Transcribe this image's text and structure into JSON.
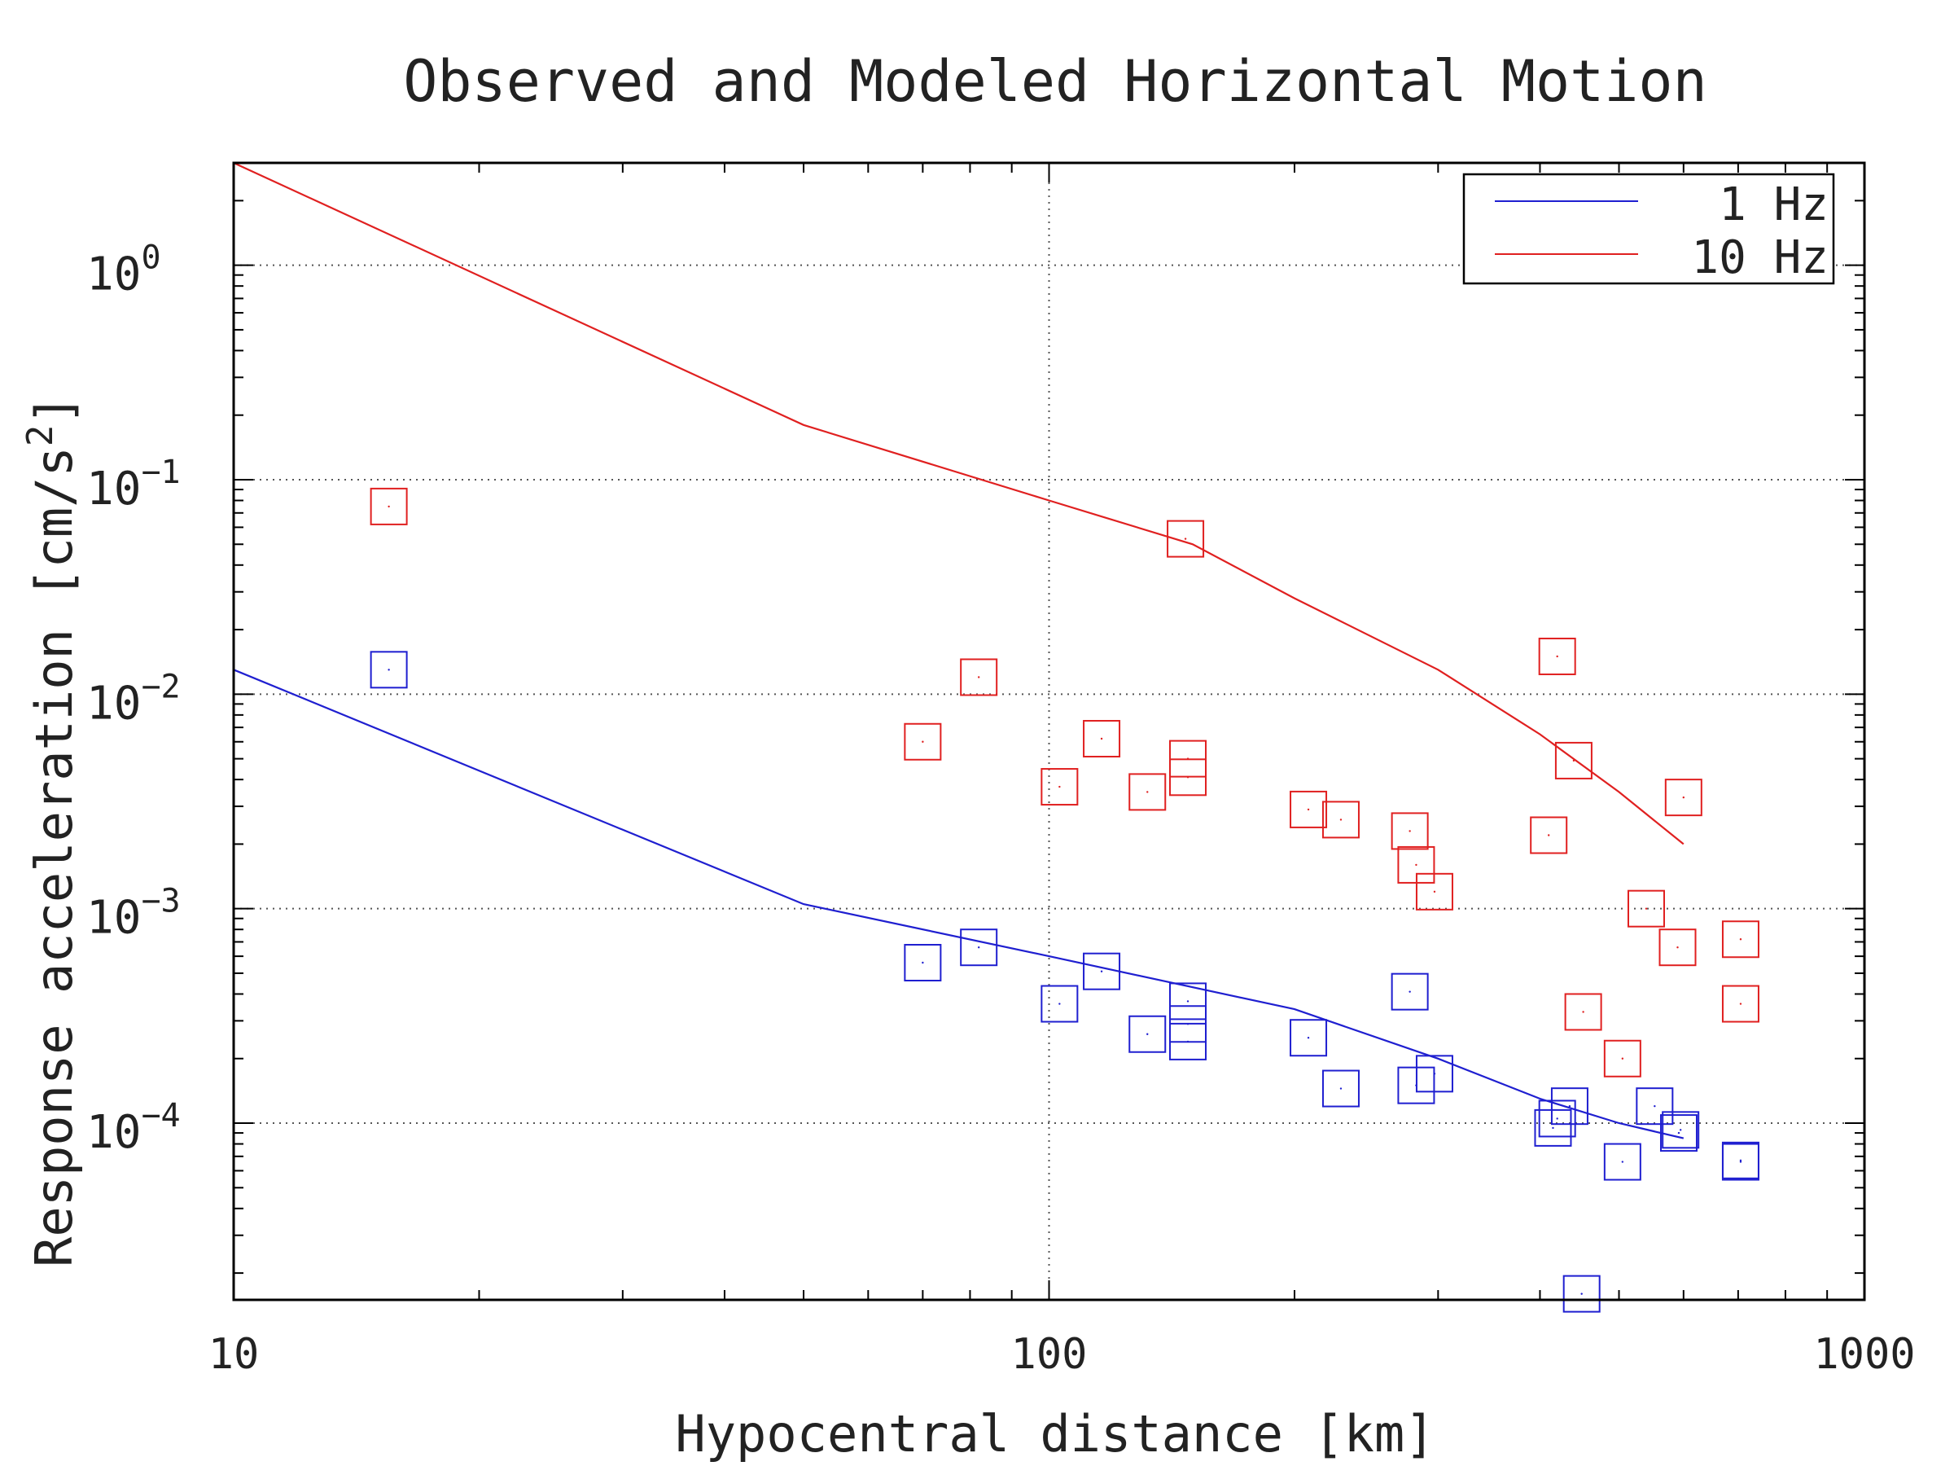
{
  "chart_data": {
    "type": "scatter",
    "title": "Observed and Modeled Horizontal Motion",
    "xlabel": "Hypocentral distance [km]",
    "ylabel_main": "Response acceleration [cm/s",
    "ylabel_sup": "2",
    "ylabel_end": "]",
    "xscale": "log",
    "yscale": "log",
    "xlim": [
      10,
      1000
    ],
    "ylim": [
      1.5e-05,
      3
    ],
    "x_ticks": [
      {
        "value": 10,
        "label": "10"
      },
      {
        "value": 100,
        "label": "100"
      },
      {
        "value": 1000,
        "label": "1000"
      }
    ],
    "y_ticks": [
      {
        "value": 1,
        "base": "10",
        "exp": "0"
      },
      {
        "value": 0.1,
        "base": "10",
        "exp": "−1"
      },
      {
        "value": 0.01,
        "base": "10",
        "exp": "−2"
      },
      {
        "value": 0.001,
        "base": "10",
        "exp": "−3"
      },
      {
        "value": 0.0001,
        "base": "10",
        "exp": "−4"
      }
    ],
    "grid": "dotted",
    "legend_position": "top-right",
    "colors": {
      "1 Hz": "#1f1fd0",
      "10 Hz": "#e02020"
    },
    "series": [
      {
        "name": "1 Hz",
        "color": "#1f1fd0",
        "model": [
          [
            10,
            0.013
          ],
          [
            50,
            0.00105
          ],
          [
            100,
            0.0006
          ],
          [
            200,
            0.00034
          ],
          [
            300,
            0.0002
          ],
          [
            400,
            0.00013
          ],
          [
            500,
            0.0001
          ],
          [
            600,
            8.5e-05
          ]
        ],
        "observed": [
          [
            15.5,
            0.013
          ],
          [
            70,
            0.00056
          ],
          [
            82,
            0.00066
          ],
          [
            103,
            0.00036
          ],
          [
            116,
            0.00051
          ],
          [
            132,
            0.00026
          ],
          [
            148,
            0.00037
          ],
          [
            148,
            0.00029
          ],
          [
            148,
            0.00024
          ],
          [
            208,
            0.00025
          ],
          [
            228,
            0.000145
          ],
          [
            277,
            0.00041
          ],
          [
            282,
            0.00015
          ],
          [
            297,
            0.00017
          ],
          [
            415,
            9.5e-05
          ],
          [
            420,
            0.000105
          ],
          [
            435,
            0.00012
          ],
          [
            450,
            1.6e-05
          ],
          [
            505,
            6.6e-05
          ],
          [
            553,
            0.00012
          ],
          [
            592,
            9e-05
          ],
          [
            595,
            9.3e-05
          ],
          [
            705,
            6.6e-05
          ],
          [
            705,
            6.7e-05
          ]
        ]
      },
      {
        "name": "10 Hz",
        "color": "#e02020",
        "model": [
          [
            10,
            3
          ],
          [
            50,
            0.18
          ],
          [
            100,
            0.08
          ],
          [
            150,
            0.05
          ],
          [
            200,
            0.028
          ],
          [
            300,
            0.013
          ],
          [
            400,
            0.0065
          ],
          [
            500,
            0.0035
          ],
          [
            600,
            0.002
          ]
        ],
        "observed": [
          [
            15.5,
            0.075
          ],
          [
            70,
            0.006
          ],
          [
            82,
            0.012
          ],
          [
            103,
            0.0037
          ],
          [
            116,
            0.0062
          ],
          [
            132,
            0.0035
          ],
          [
            147,
            0.053
          ],
          [
            148,
            0.005
          ],
          [
            148,
            0.0041
          ],
          [
            208,
            0.0029
          ],
          [
            228,
            0.0026
          ],
          [
            277,
            0.0023
          ],
          [
            282,
            0.0016
          ],
          [
            297,
            0.0012
          ],
          [
            410,
            0.0022
          ],
          [
            420,
            0.015
          ],
          [
            440,
            0.0049
          ],
          [
            452,
            0.00033
          ],
          [
            505,
            0.0002
          ],
          [
            540,
            0.001
          ],
          [
            590,
            0.00066
          ],
          [
            600,
            0.0033
          ],
          [
            705,
            0.00072
          ],
          [
            705,
            0.00036
          ]
        ]
      }
    ],
    "legend": [
      {
        "label": "1 Hz",
        "color": "#1f1fd0"
      },
      {
        "label": "10 Hz",
        "color": "#e02020"
      }
    ]
  }
}
